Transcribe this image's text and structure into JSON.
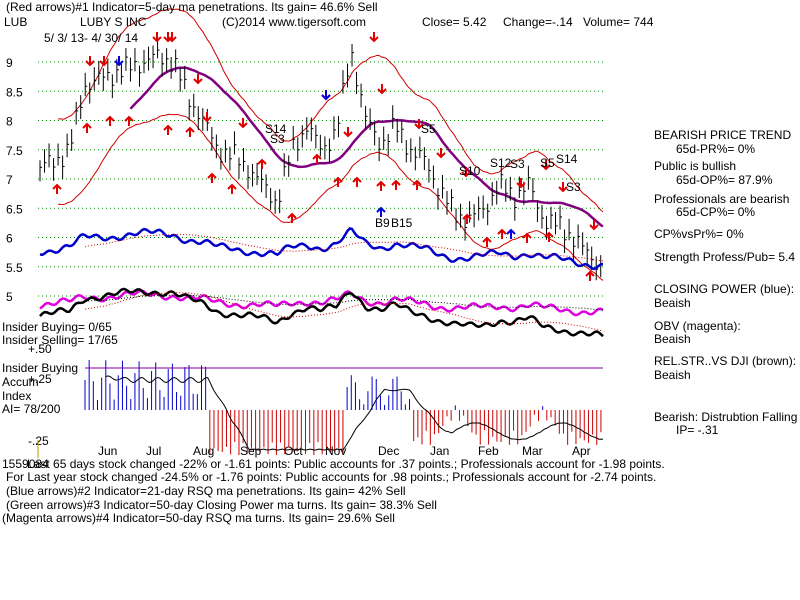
{
  "header": {
    "line1": "(Red arrows)#1 Indicator=5-day ma penetrations. Its gain= 46.6% Sell",
    "ticker": "LUB",
    "company": "LUBY S INC",
    "copyright": "(C)2014 www.tigersoft.com",
    "close": "Close=  5.42",
    "change": "Change=-.14",
    "volume": "Volume= 744",
    "daterange": "5/ 3/ 13- 4/ 30/ 14"
  },
  "right_panel": {
    "bearish_trend": "BEARISH PRICE TREND",
    "pr": "65d-PR%= 0%",
    "public_bullish": "Public is bullish",
    "op": "65d-OP%= 87.9%",
    "prof_bearish": "Professionals are bearish",
    "cp": "65d-CP%= 0%",
    "cpvspr": "CP%vsPr%=  0%",
    "strength": "Strength Profess/Pub= 5.4",
    "closing_power": "CLOSING POWER (blue):",
    "closing_power_val": "Beaish",
    "obv": "OBV (magenta):",
    "obv_val": "Beaish",
    "relstr": "REL.STR..VS DJI (brown):",
    "relstr_val": "Beaish",
    "bearish_dist": "Bearish: Distrubtion Falling",
    "ip": "IP= -.31"
  },
  "insider": {
    "buying": "Insider Buying= 0/65",
    "selling": "Insider Selling= 17/65",
    "label1": "Insider Buying",
    "label2": "Accum",
    "label3": "Index",
    "ai": "AI= 78/200"
  },
  "footer": {
    "line1_prefix": "1559084",
    "line1": "Last 65 days stock changed -22% or -1.61 points:  Public accounts for  .37 points.;  Professionals account for -1.98 points.",
    "line2": "For Last year stock changed -24.5% or -1.76 points:  Public accounts for  .98 points.;  Professionals account for -2.74 points.",
    "line3": "(Blue arrows)#2 Indicator=21-day RSQ ma penetrations. Its gain= 42% Sell",
    "line4": "(Green arrows)#3 Indicator=50-day Closing Power ma turns. Its gain= 38.3% Sell",
    "line5": "(Magenta arrows)#4 Indicator=50-day RSQ ma turns. Its gain= 29.6% Sell"
  },
  "chart_data": {
    "type": "line",
    "price_ticks": [
      "9",
      "8.5",
      "8",
      "7.5",
      "7",
      "6.5",
      "6",
      "5.5",
      "5"
    ],
    "price_tick_values": [
      9,
      8.5,
      8,
      7.5,
      7,
      6.5,
      6,
      5.5,
      5
    ],
    "ai_ticks": [
      "+.50",
      "+.25",
      "-.25"
    ],
    "months": [
      "Jun",
      "Jul",
      "Aug",
      "Sep",
      "Oct",
      "Nov",
      "Dec",
      "Jan",
      "Feb",
      "Mar",
      "Apr"
    ],
    "signal_labels": [
      "S14",
      "S3",
      "S5",
      "S10",
      "S12",
      "S3",
      "S5",
      "S14",
      "S3",
      "B9",
      "B15"
    ],
    "price_close": [
      7.2,
      7.3,
      7.5,
      8.6,
      8.7,
      8.8,
      8.9,
      9.0,
      9.1,
      9.0,
      8.4,
      8.0,
      7.5,
      7.4,
      7.2,
      6.9,
      6.6,
      7.5,
      7.9,
      7.5,
      7.8,
      9.2,
      8.0,
      7.6,
      7.9,
      7.5,
      7.3,
      6.8,
      6.4,
      6.3,
      6.5,
      6.9,
      6.7,
      6.9,
      6.3,
      6.2,
      6.0,
      5.7,
      5.5
    ]
  }
}
